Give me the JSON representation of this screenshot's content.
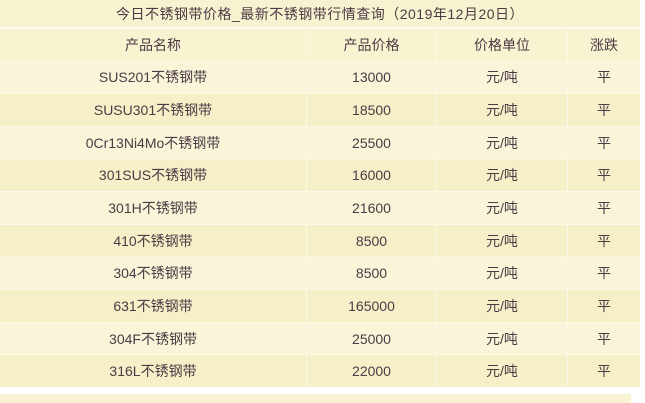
{
  "page": {
    "title": "今日不锈钢带价格_最新不锈钢带行情查询（2019年12月20日）"
  },
  "table": {
    "columns": [
      "产品名称",
      "产品价格",
      "价格单位",
      "涨跌"
    ],
    "rows": [
      {
        "name": "SUS201不锈钢带",
        "price": "13000",
        "unit": "元/吨",
        "change": "平"
      },
      {
        "name": "SUSU301不锈钢带",
        "price": "18500",
        "unit": "元/吨",
        "change": "平"
      },
      {
        "name": "0Cr13Ni4Mo不锈钢带",
        "price": "25500",
        "unit": "元/吨",
        "change": "平"
      },
      {
        "name": "301SUS不锈钢带",
        "price": "16000",
        "unit": "元/吨",
        "change": "平"
      },
      {
        "name": "301H不锈钢带",
        "price": "21600",
        "unit": "元/吨",
        "change": "平"
      },
      {
        "name": "410不锈钢带",
        "price": "8500",
        "unit": "元/吨",
        "change": "平"
      },
      {
        "name": "304不锈钢带",
        "price": "8500",
        "unit": "元/吨",
        "change": "平"
      },
      {
        "name": "631不锈钢带",
        "price": "165000",
        "unit": "元/吨",
        "change": "平"
      },
      {
        "name": "304F不锈钢带",
        "price": "25000",
        "unit": "元/吨",
        "change": "平"
      },
      {
        "name": "316L不锈钢带",
        "price": "22000",
        "unit": "元/吨",
        "change": "平"
      }
    ]
  },
  "colors": {
    "cell_background": "#f8f3d2",
    "row_alt_background": "#f6f0c9",
    "divider": "#fbf8e6",
    "text": "#4c3a44",
    "page_background": "#ffffff"
  }
}
